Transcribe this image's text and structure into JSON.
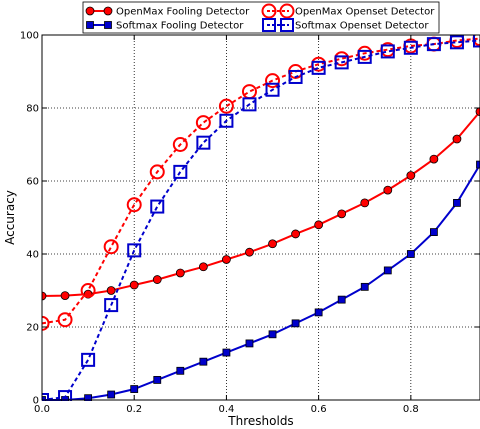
{
  "chart_data": {
    "type": "line",
    "title": "",
    "xlabel": "Thresholds",
    "ylabel": "Accuracy",
    "xlim": [
      0.0,
      0.95
    ],
    "ylim": [
      0,
      100
    ],
    "x_ticks": [
      "0.0",
      "0.2",
      "0.4",
      "0.6",
      "0.8"
    ],
    "y_ticks": [
      "0",
      "20",
      "40",
      "60",
      "80",
      "100"
    ],
    "grid": true,
    "legend_position": "top",
    "x": [
      0.0,
      0.05,
      0.1,
      0.15,
      0.2,
      0.25,
      0.3,
      0.35,
      0.4,
      0.45,
      0.5,
      0.55,
      0.6,
      0.65,
      0.7,
      0.75,
      0.8,
      0.85,
      0.9,
      0.95
    ],
    "series": [
      {
        "name": "OpenMax Fooling Detector",
        "color": "#ff0000",
        "line": "solid",
        "marker": "filled-circle",
        "values": [
          28.5,
          28.6,
          29.0,
          30.0,
          31.5,
          33.0,
          34.8,
          36.5,
          38.5,
          40.5,
          42.8,
          45.5,
          48.0,
          51.0,
          54.0,
          57.5,
          61.5,
          66.0,
          71.5,
          79.0
        ]
      },
      {
        "name": "Softmax Fooling Detector",
        "color": "#0000cc",
        "line": "solid",
        "marker": "filled-square",
        "values": [
          0.0,
          0.0,
          0.5,
          1.5,
          3.0,
          5.5,
          8.0,
          10.5,
          13.0,
          15.5,
          18.0,
          21.0,
          24.0,
          27.5,
          31.0,
          35.5,
          40.0,
          46.0,
          54.0,
          64.5
        ]
      },
      {
        "name": "OpenMax Openset Detector",
        "color": "#ff0000",
        "line": "dashed",
        "marker": "open-circle",
        "values": [
          21.0,
          22.0,
          30.0,
          42.0,
          53.5,
          62.5,
          70.0,
          76.0,
          80.5,
          84.5,
          87.5,
          90.0,
          92.0,
          93.5,
          95.0,
          96.0,
          97.0,
          97.5,
          98.5,
          99.0
        ]
      },
      {
        "name": "Softmax Openset Detector",
        "color": "#0000cc",
        "line": "dashed",
        "marker": "open-square",
        "values": [
          0.0,
          0.8,
          11.0,
          26.0,
          41.0,
          53.0,
          62.5,
          70.5,
          76.5,
          81.0,
          85.0,
          88.5,
          91.0,
          92.5,
          94.0,
          95.5,
          96.5,
          97.5,
          98.0,
          98.5
        ]
      }
    ]
  }
}
